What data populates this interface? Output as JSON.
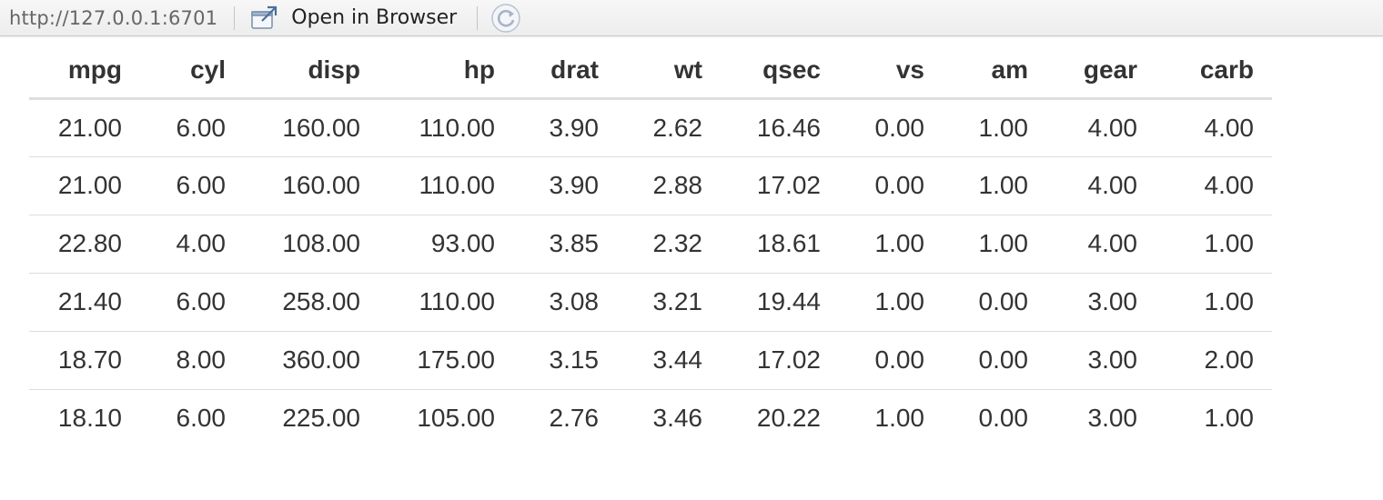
{
  "toolbar": {
    "url": "http://127.0.0.1:6701",
    "open_in_browser_label": "Open in Browser",
    "open_icon": "external-window-icon",
    "refresh_icon": "refresh-icon"
  },
  "table": {
    "headers": [
      "mpg",
      "cyl",
      "disp",
      "hp",
      "drat",
      "wt",
      "qsec",
      "vs",
      "am",
      "gear",
      "carb"
    ],
    "rows": [
      [
        "21.00",
        "6.00",
        "160.00",
        "110.00",
        "3.90",
        "2.62",
        "16.46",
        "0.00",
        "1.00",
        "4.00",
        "4.00"
      ],
      [
        "21.00",
        "6.00",
        "160.00",
        "110.00",
        "3.90",
        "2.88",
        "17.02",
        "0.00",
        "1.00",
        "4.00",
        "4.00"
      ],
      [
        "22.80",
        "4.00",
        "108.00",
        "93.00",
        "3.85",
        "2.32",
        "18.61",
        "1.00",
        "1.00",
        "4.00",
        "1.00"
      ],
      [
        "21.40",
        "6.00",
        "258.00",
        "110.00",
        "3.08",
        "3.21",
        "19.44",
        "1.00",
        "0.00",
        "3.00",
        "1.00"
      ],
      [
        "18.70",
        "8.00",
        "360.00",
        "175.00",
        "3.15",
        "3.44",
        "17.02",
        "0.00",
        "0.00",
        "3.00",
        "2.00"
      ],
      [
        "18.10",
        "6.00",
        "225.00",
        "105.00",
        "2.76",
        "3.46",
        "20.22",
        "1.00",
        "0.00",
        "3.00",
        "1.00"
      ]
    ]
  }
}
